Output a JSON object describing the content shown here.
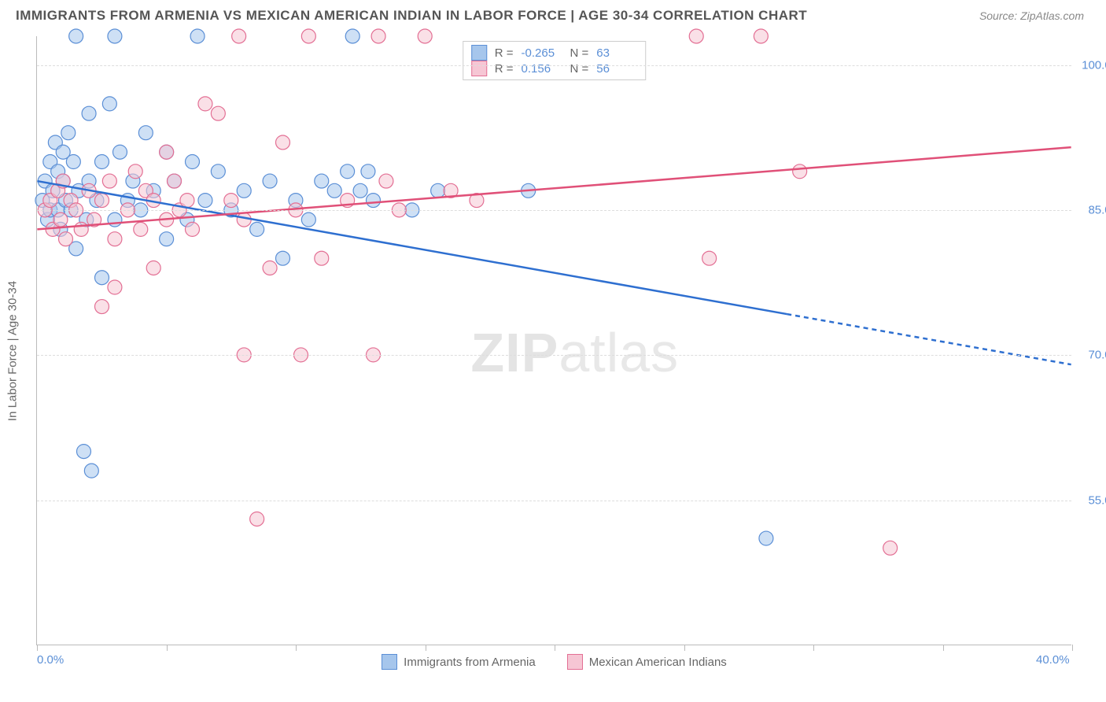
{
  "title": "IMMIGRANTS FROM ARMENIA VS MEXICAN AMERICAN INDIAN IN LABOR FORCE | AGE 30-34 CORRELATION CHART",
  "source": "Source: ZipAtlas.com",
  "y_axis_title": "In Labor Force | Age 30-34",
  "watermark": {
    "bold": "ZIP",
    "rest": "atlas"
  },
  "chart": {
    "type": "scatter",
    "background_color": "#ffffff",
    "grid_color": "#dddddd",
    "axis_color": "#bbbbbb",
    "tick_label_color": "#5b8fd6",
    "xlim": [
      0,
      40
    ],
    "ylim": [
      40,
      103
    ],
    "x_ticks_minor": [
      0,
      5,
      10,
      15,
      20,
      25,
      30,
      35,
      40
    ],
    "x_tick_labels": [
      {
        "v": 0,
        "label": "0.0%"
      },
      {
        "v": 40,
        "label": "40.0%"
      }
    ],
    "y_ticks": [
      {
        "v": 55,
        "label": "55.0%"
      },
      {
        "v": 70,
        "label": "70.0%"
      },
      {
        "v": 85,
        "label": "85.0%"
      },
      {
        "v": 100,
        "label": "100.0%"
      }
    ],
    "marker_radius": 9,
    "marker_opacity": 0.55,
    "line_width": 2.5,
    "series": [
      {
        "id": "armenia",
        "name": "Immigrants from Armenia",
        "fill_color": "#a6c6ec",
        "stroke_color": "#5b8fd6",
        "line_color": "#2e6fd0",
        "r": -0.265,
        "n": 63,
        "trend": {
          "x1": 0,
          "y1": 88.0,
          "x2": 40,
          "y2": 69.0
        },
        "trend_solid_until_x": 29,
        "points": [
          [
            0.2,
            86
          ],
          [
            0.3,
            88
          ],
          [
            0.4,
            84
          ],
          [
            0.5,
            90
          ],
          [
            0.5,
            85
          ],
          [
            0.6,
            87
          ],
          [
            0.7,
            92
          ],
          [
            0.8,
            85
          ],
          [
            0.8,
            89
          ],
          [
            0.9,
            83
          ],
          [
            1.0,
            88
          ],
          [
            1.0,
            91
          ],
          [
            1.1,
            86
          ],
          [
            1.2,
            93
          ],
          [
            1.3,
            85
          ],
          [
            1.4,
            90
          ],
          [
            1.5,
            81
          ],
          [
            1.5,
            103
          ],
          [
            1.6,
            87
          ],
          [
            1.8,
            60
          ],
          [
            1.9,
            84
          ],
          [
            2.0,
            88
          ],
          [
            2.0,
            95
          ],
          [
            2.1,
            58
          ],
          [
            2.3,
            86
          ],
          [
            2.5,
            90
          ],
          [
            2.5,
            78
          ],
          [
            2.8,
            96
          ],
          [
            3.0,
            84
          ],
          [
            3.0,
            103
          ],
          [
            3.2,
            91
          ],
          [
            3.5,
            86
          ],
          [
            3.7,
            88
          ],
          [
            4.0,
            85
          ],
          [
            4.2,
            93
          ],
          [
            4.5,
            87
          ],
          [
            5.0,
            82
          ],
          [
            5.0,
            91
          ],
          [
            5.3,
            88
          ],
          [
            5.8,
            84
          ],
          [
            6.0,
            90
          ],
          [
            6.2,
            103
          ],
          [
            6.5,
            86
          ],
          [
            7.0,
            89
          ],
          [
            7.5,
            85
          ],
          [
            8.0,
            87
          ],
          [
            8.5,
            83
          ],
          [
            9.0,
            88
          ],
          [
            9.5,
            80
          ],
          [
            10.0,
            86
          ],
          [
            10.5,
            84
          ],
          [
            11.0,
            88
          ],
          [
            11.5,
            87
          ],
          [
            12.0,
            89
          ],
          [
            12.2,
            103
          ],
          [
            12.5,
            87
          ],
          [
            12.8,
            89
          ],
          [
            13.0,
            86
          ],
          [
            14.5,
            85
          ],
          [
            15.5,
            87
          ],
          [
            19.0,
            87
          ],
          [
            28.2,
            51
          ]
        ]
      },
      {
        "id": "mexican",
        "name": "Mexican American Indians",
        "fill_color": "#f6c6d4",
        "stroke_color": "#e36f94",
        "line_color": "#e05078",
        "r": 0.156,
        "n": 56,
        "trend": {
          "x1": 0,
          "y1": 83.0,
          "x2": 40,
          "y2": 91.5
        },
        "trend_solid_until_x": 40,
        "points": [
          [
            0.3,
            85
          ],
          [
            0.5,
            86
          ],
          [
            0.6,
            83
          ],
          [
            0.8,
            87
          ],
          [
            0.9,
            84
          ],
          [
            1.0,
            88
          ],
          [
            1.1,
            82
          ],
          [
            1.3,
            86
          ],
          [
            1.5,
            85
          ],
          [
            1.7,
            83
          ],
          [
            2.0,
            87
          ],
          [
            2.2,
            84
          ],
          [
            2.5,
            86
          ],
          [
            2.5,
            75
          ],
          [
            2.8,
            88
          ],
          [
            3.0,
            82
          ],
          [
            3.0,
            77
          ],
          [
            3.5,
            85
          ],
          [
            3.8,
            89
          ],
          [
            4.0,
            83
          ],
          [
            4.2,
            87
          ],
          [
            4.5,
            86
          ],
          [
            4.5,
            79
          ],
          [
            5.0,
            84
          ],
          [
            5.0,
            91
          ],
          [
            5.3,
            88
          ],
          [
            5.5,
            85
          ],
          [
            5.8,
            86
          ],
          [
            6.0,
            83
          ],
          [
            6.5,
            96
          ],
          [
            7.0,
            95
          ],
          [
            7.5,
            86
          ],
          [
            7.8,
            103
          ],
          [
            8.0,
            84
          ],
          [
            8.0,
            70
          ],
          [
            8.5,
            53
          ],
          [
            9.0,
            79
          ],
          [
            9.5,
            92
          ],
          [
            10.0,
            85
          ],
          [
            10.2,
            70
          ],
          [
            10.5,
            103
          ],
          [
            11.0,
            80
          ],
          [
            12.0,
            86
          ],
          [
            13.0,
            70
          ],
          [
            13.2,
            103
          ],
          [
            13.5,
            88
          ],
          [
            14.0,
            85
          ],
          [
            15.0,
            103
          ],
          [
            16.0,
            87
          ],
          [
            17.0,
            86
          ],
          [
            25.5,
            103
          ],
          [
            26.0,
            80
          ],
          [
            28.0,
            103
          ],
          [
            29.5,
            89
          ],
          [
            33.0,
            50
          ]
        ]
      }
    ]
  },
  "legend_top_labels": {
    "r": "R =",
    "n": "N ="
  },
  "bottom_legend": [
    {
      "series": "armenia"
    },
    {
      "series": "mexican"
    }
  ]
}
